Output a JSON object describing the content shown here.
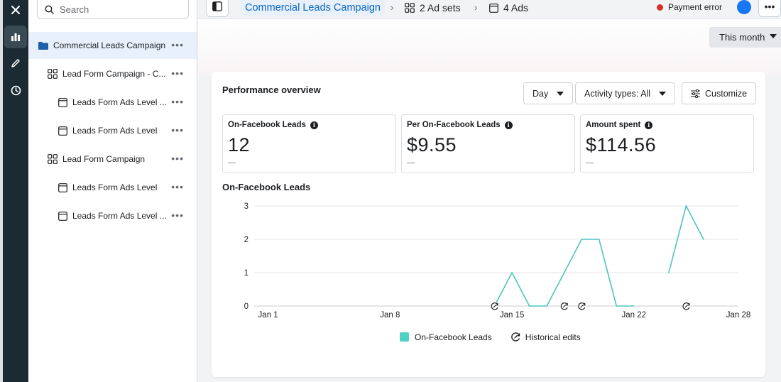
{
  "rail": {
    "close_icon": "close-icon",
    "items": [
      "bar-chart-icon",
      "pencil-icon",
      "clock-icon"
    ]
  },
  "sidebar": {
    "search_placeholder": "Search",
    "tree": [
      {
        "label": "Commercial Leads Campaign",
        "icon": "folder-icon",
        "level": 0,
        "selected": true
      },
      {
        "label": "Lead Form Campaign - C...",
        "icon": "grid-icon",
        "level": 1,
        "selected": false
      },
      {
        "label": "Leads Form Ads Level ...",
        "icon": "ad-icon",
        "level": 2,
        "selected": false
      },
      {
        "label": "Leads Form Ads Level",
        "icon": "ad-icon",
        "level": 2,
        "selected": false
      },
      {
        "label": "Lead Form Campaign",
        "icon": "grid-icon",
        "level": 1,
        "selected": false
      },
      {
        "label": "Leads Form Ads Level",
        "icon": "ad-icon",
        "level": 2,
        "selected": false
      },
      {
        "label": "Leads Form Ads Level ...",
        "icon": "ad-icon",
        "level": 2,
        "selected": false
      }
    ]
  },
  "topbar": {
    "campaign_crumb": "Commercial Leads Campaign",
    "adsets_crumb": "2 Ad sets",
    "ads_crumb": "4 Ads",
    "payment_status": "Payment error",
    "payment_color": "#d93025"
  },
  "date_range": "This month",
  "overview": {
    "title": "Performance overview",
    "granularity": "Day",
    "activity_filter": "Activity types: All",
    "customize": "Customize",
    "metrics": [
      {
        "label": "On-Facebook Leads",
        "value": "12"
      },
      {
        "label": "Per On-Facebook Leads",
        "value": "$9.55"
      },
      {
        "label": "Amount spent",
        "value": "$114.56"
      }
    ],
    "chart_title": "On-Facebook Leads",
    "legend_leads": "On-Facebook Leads",
    "legend_edits": "Historical edits"
  },
  "chart_data": {
    "type": "line",
    "title": "On-Facebook Leads",
    "x_tick_labels": [
      "Jan 1",
      "Jan 8",
      "Jan 15",
      "Jan 22",
      "Jan 28"
    ],
    "x_tick_days": [
      1,
      8,
      15,
      22,
      28
    ],
    "ylim": [
      0,
      3
    ],
    "y_ticks": [
      0,
      1,
      2,
      3
    ],
    "grid": true,
    "legend_position": "bottom",
    "series": [
      {
        "name": "On-Facebook Leads",
        "color": "#4fc3bd",
        "segments": [
          [
            [
              14,
              0
            ],
            [
              15,
              1
            ],
            [
              16,
              0
            ],
            [
              17,
              0
            ],
            [
              18,
              1
            ],
            [
              19,
              2
            ],
            [
              20,
              2
            ],
            [
              21,
              0
            ],
            [
              22,
              0
            ]
          ],
          [
            [
              24,
              1
            ],
            [
              25,
              3
            ],
            [
              26,
              2
            ]
          ]
        ]
      }
    ],
    "historical_edit_days": [
      14,
      18,
      19,
      25
    ]
  }
}
